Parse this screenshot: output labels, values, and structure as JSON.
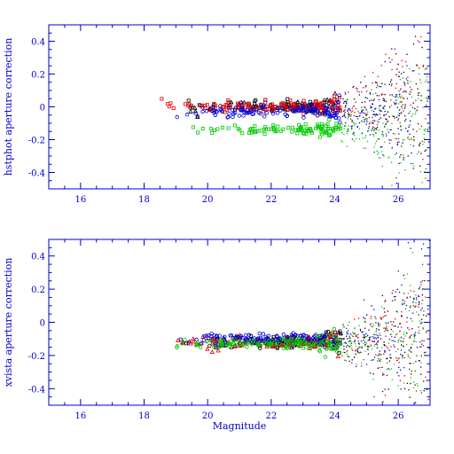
{
  "colors": {
    "axis": "#0000cc",
    "black": "#000000",
    "red": "#dd0000",
    "blue": "#0000dd",
    "green": "#00cc00"
  },
  "chart_data": [
    {
      "type": "scatter",
      "title": "",
      "xlabel": "",
      "ylabel": "hstphot aperture correction",
      "xlim": [
        15,
        27
      ],
      "ylim": [
        -0.5,
        0.5
      ],
      "xticks": [
        16,
        18,
        20,
        22,
        24,
        26
      ],
      "yticks": [
        -0.4,
        -0.2,
        0,
        0.2,
        0.4
      ],
      "xticklabels": [
        "16",
        "18",
        "20",
        "22",
        "24",
        "26"
      ],
      "yticklabels": [
        "-0.4",
        "-0.2",
        "0",
        "0.2",
        "0.4"
      ],
      "grid": false,
      "series": [
        {
          "color": "black",
          "marker": "mixed",
          "cluster": {
            "xmin": 19.0,
            "xmax": 27.0,
            "ycenter": 0.0,
            "spread_bright": 0.03,
            "spread_faint": 0.5
          }
        },
        {
          "color": "red",
          "marker": "square",
          "cluster": {
            "xmin": 18.4,
            "xmax": 27.0,
            "ycenter": 0.0,
            "spread_bright": 0.03,
            "spread_faint": 0.5
          }
        },
        {
          "color": "blue",
          "marker": "circle",
          "cluster": {
            "xmin": 18.8,
            "xmax": 26.5,
            "ycenter": -0.03,
            "spread_bright": 0.03,
            "spread_faint": 0.45
          }
        },
        {
          "color": "green",
          "marker": "square",
          "cluster": {
            "xmin": 19.3,
            "xmax": 27.0,
            "ycenter": -0.14,
            "spread_bright": 0.03,
            "spread_faint": 0.45
          }
        }
      ]
    },
    {
      "type": "scatter",
      "title": "",
      "xlabel": "Magnitude",
      "ylabel": "xvista aperture correction",
      "xlim": [
        15,
        27
      ],
      "ylim": [
        -0.5,
        0.5
      ],
      "xticks": [
        16,
        18,
        20,
        22,
        24,
        26
      ],
      "yticks": [
        -0.4,
        -0.2,
        0,
        0.2,
        0.4
      ],
      "xticklabels": [
        "16",
        "18",
        "20",
        "22",
        "24",
        "26"
      ],
      "yticklabels": [
        "-0.4",
        "-0.2",
        "0",
        "0.2",
        "0.4"
      ],
      "grid": false,
      "series": [
        {
          "color": "black",
          "marker": "mixed",
          "cluster": {
            "xmin": 19.0,
            "xmax": 27.0,
            "ycenter": -0.12,
            "spread_bright": 0.03,
            "spread_faint": 0.45
          }
        },
        {
          "color": "red",
          "marker": "triangle",
          "cluster": {
            "xmin": 18.9,
            "xmax": 27.0,
            "ycenter": -0.12,
            "spread_bright": 0.03,
            "spread_faint": 0.5
          }
        },
        {
          "color": "blue",
          "marker": "circle",
          "cluster": {
            "xmin": 19.0,
            "xmax": 26.8,
            "ycenter": -0.1,
            "spread_bright": 0.03,
            "spread_faint": 0.5
          }
        },
        {
          "color": "green",
          "marker": "circle",
          "cluster": {
            "xmin": 18.6,
            "xmax": 26.8,
            "ycenter": -0.13,
            "spread_bright": 0.03,
            "spread_faint": 0.45
          }
        }
      ]
    }
  ]
}
